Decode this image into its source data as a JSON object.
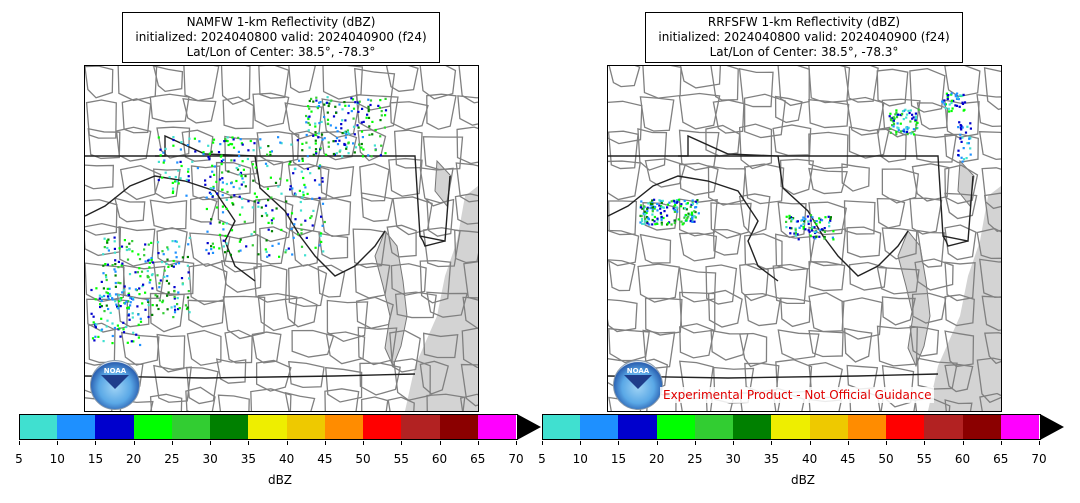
{
  "colors": {
    "scale": [
      "#40e0d0",
      "#1e90ff",
      "#0000cd",
      "#00ff00",
      "#32cd32",
      "#008000",
      "#eeee00",
      "#eec900",
      "#ff8c00",
      "#ff0000",
      "#b22222",
      "#8b0000",
      "#ff00ff"
    ],
    "state_border": "#222222",
    "county_border": "#808080",
    "water": "#d3d3d3"
  },
  "panels": [
    {
      "title": "NAMFW 1-km Reflectivity (dBZ)",
      "init_line": "initialized: 2024040800 valid: 2024040900 (f24)",
      "center_line": "Lat/Lon of Center: 38.5°, -78.3°"
    },
    {
      "title": "RRFSFW 1-km Reflectivity (dBZ)",
      "init_line": "initialized: 2024040800 valid: 2024040900 (f24)",
      "center_line": "Lat/Lon of Center: 38.5°, -78.3°",
      "disclaimer": "Experimental Product - Not Official Guidance"
    }
  ],
  "colorbar": {
    "ticks": [
      "5",
      "10",
      "15",
      "20",
      "25",
      "30",
      "35",
      "40",
      "45",
      "50",
      "55",
      "60",
      "65",
      "70"
    ],
    "label": "dBZ"
  },
  "logo": "NOAA"
}
